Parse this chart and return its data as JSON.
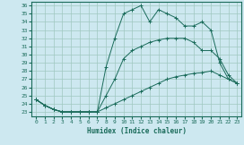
{
  "title": "",
  "xlabel": "Humidex (Indice chaleur)",
  "background_color": "#cde8f0",
  "grid_color": "#a0c8c0",
  "line_color": "#1a6b5a",
  "xlim": [
    -0.5,
    23.5
  ],
  "ylim": [
    22.5,
    36.5
  ],
  "xticks": [
    0,
    1,
    2,
    3,
    4,
    5,
    6,
    7,
    8,
    9,
    10,
    11,
    12,
    13,
    14,
    15,
    16,
    17,
    18,
    19,
    20,
    21,
    22,
    23
  ],
  "yticks": [
    23,
    24,
    25,
    26,
    27,
    28,
    29,
    30,
    31,
    32,
    33,
    34,
    35,
    36
  ],
  "line1_x": [
    0,
    1,
    2,
    3,
    4,
    5,
    6,
    7
  ],
  "line1_y": [
    24.5,
    23.8,
    23.3,
    23.0,
    23.0,
    23.0,
    23.0,
    23.0
  ],
  "line2_x": [
    0,
    1,
    2,
    3,
    4,
    5,
    6,
    7,
    8,
    9,
    10,
    11,
    12,
    13,
    14,
    15,
    16,
    17,
    18,
    19,
    20,
    21,
    22,
    23
  ],
  "line2_y": [
    24.5,
    23.8,
    23.3,
    23.0,
    23.0,
    23.0,
    23.0,
    23.0,
    23.5,
    24.0,
    24.5,
    25.0,
    25.5,
    26.0,
    26.5,
    27.0,
    27.3,
    27.5,
    27.7,
    27.8,
    28.0,
    27.5,
    27.0,
    26.5
  ],
  "line3_x": [
    0,
    1,
    2,
    3,
    4,
    5,
    6,
    7,
    8,
    9,
    10,
    11,
    12,
    13,
    14,
    15,
    16,
    17,
    18,
    19,
    20,
    21,
    22,
    23
  ],
  "line3_y": [
    24.5,
    23.8,
    23.3,
    23.0,
    23.0,
    23.0,
    23.0,
    23.0,
    25.0,
    27.0,
    29.5,
    30.5,
    31.0,
    31.5,
    31.8,
    32.0,
    32.0,
    32.0,
    31.5,
    30.5,
    30.5,
    29.5,
    27.5,
    26.5
  ],
  "line4_x": [
    0,
    1,
    2,
    3,
    4,
    5,
    6,
    7,
    8,
    9,
    10,
    11,
    12,
    13,
    14,
    15,
    16,
    17,
    18,
    19,
    20,
    21,
    22,
    23
  ],
  "line4_y": [
    24.5,
    23.8,
    23.3,
    23.0,
    23.0,
    23.0,
    23.0,
    23.0,
    28.5,
    32.0,
    35.0,
    35.5,
    36.0,
    34.0,
    35.5,
    35.0,
    34.5,
    33.5,
    33.5,
    34.0,
    33.0,
    29.0,
    27.0,
    26.5
  ]
}
